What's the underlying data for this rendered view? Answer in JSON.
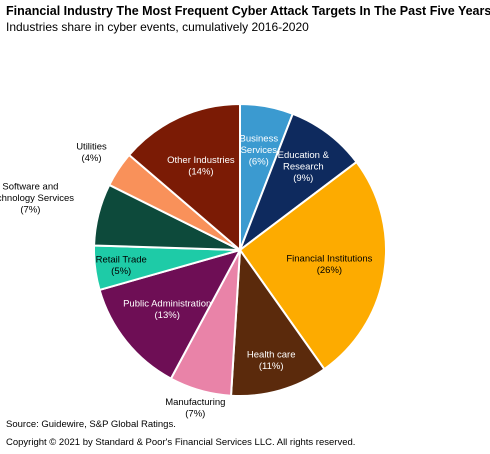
{
  "title": "Financial Industry The Most Frequent Cyber Attack Targets In The Past Five Years",
  "subtitle": "Industries share in cyber events, cumulatively 2016-2020",
  "source": "Source: Guidewire, S&P Global Ratings.",
  "copyright": "Copyright © 2021 by Standard & Poor's Financial Services LLC. All rights reserved.",
  "chart_data": {
    "type": "pie",
    "title": "Financial Industry The Most Frequent Cyber Attack Targets In The Past Five Years",
    "subtitle": "Industries share in cyber events, cumulatively 2016-2020",
    "slices": [
      {
        "name": "Business Services",
        "value": 6,
        "label": "(6%)",
        "color": "#3b9ad0",
        "label_color": "#ffffff",
        "label_pos": "inside"
      },
      {
        "name": "Education & Research",
        "value": 9,
        "label": "(9%)",
        "color": "#0e2a5e",
        "label_color": "#ffffff",
        "label_pos": "inside"
      },
      {
        "name": "Financial Institutions",
        "value": 26,
        "label": "(26%)",
        "color": "#fdab00",
        "label_color": "#000000",
        "label_pos": "inside"
      },
      {
        "name": "Health care",
        "value": 11,
        "label": "(11%)",
        "color": "#5b2a0c",
        "label_color": "#ffffff",
        "label_pos": "inside"
      },
      {
        "name": "Manufacturing",
        "value": 7,
        "label": "(7%)",
        "color": "#e983a8",
        "label_color": "#000000",
        "label_pos": "outside"
      },
      {
        "name": "Public Administration",
        "value": 13,
        "label": "(13%)",
        "color": "#6e0e55",
        "label_color": "#ffffff",
        "label_pos": "inside"
      },
      {
        "name": "Retail Trade",
        "value": 5,
        "label": "(5%)",
        "color": "#1ecba7",
        "label_color": "#000000",
        "label_pos": "inside"
      },
      {
        "name": "Software and Technology Services",
        "value": 7,
        "label": "(7%)",
        "color": "#0d4a3b",
        "label_color": "#000000",
        "label_pos": "outside"
      },
      {
        "name": "Utilities",
        "value": 4,
        "label": "(4%)",
        "color": "#f9915a",
        "label_color": "#000000",
        "label_pos": "outside"
      },
      {
        "name": "Other Industries",
        "value": 14,
        "label": "(14%)",
        "color": "#7b1b05",
        "label_color": "#ffffff",
        "label_pos": "inside"
      }
    ]
  }
}
